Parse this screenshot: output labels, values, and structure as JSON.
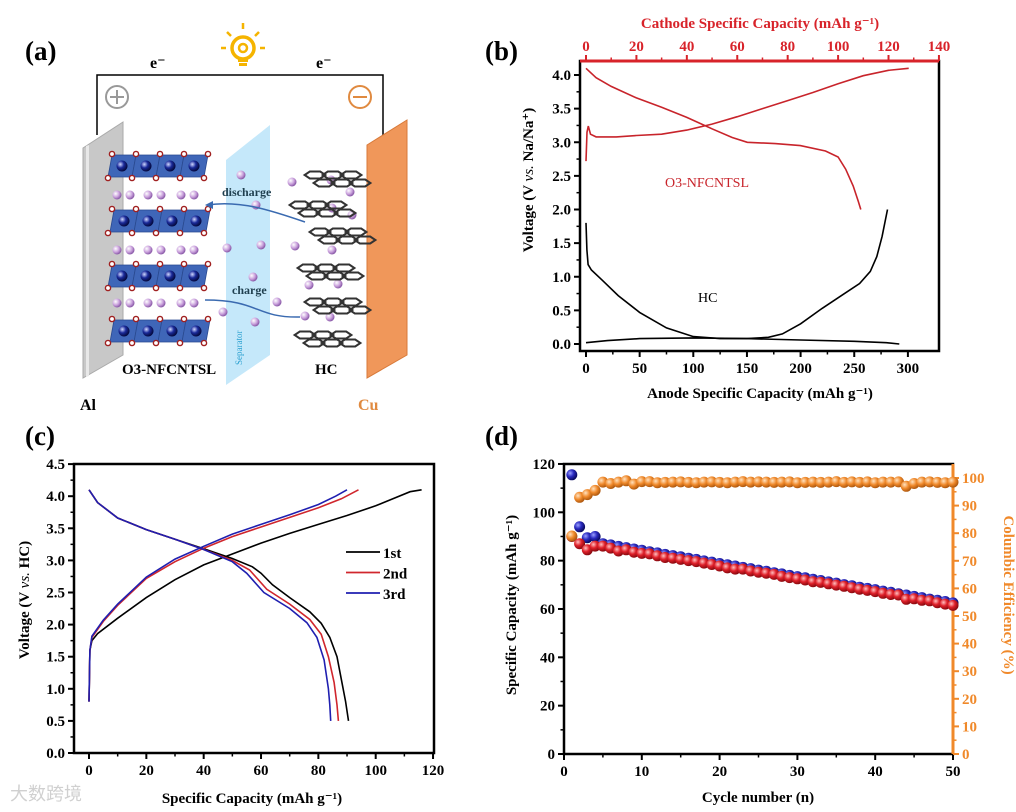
{
  "figure": {
    "watermark": "大数跨境"
  },
  "panel_a": {
    "label": "(a)",
    "electron_left": "e⁻",
    "electron_right": "e⁻",
    "discharge": "discharge",
    "charge": "charge",
    "separator": "Separator",
    "cathode": "O3-NFCNTSL",
    "anode": "HC",
    "al": "Al",
    "cu": "Cu",
    "colors": {
      "al": "#c8c8c8",
      "cu": "#f0975a",
      "separator": "#bfe6fa",
      "octahedra": "#3f66b8",
      "na_ion": "#c9a0dc",
      "wire": "#000000",
      "bulb": "#f5b400"
    }
  },
  "chart_data": [
    {
      "panel_label": "(b)",
      "type": "line",
      "title": "",
      "xlabel": "Anode Specific Capacity (mAh g⁻¹)",
      "x2label": "Cathode Specific Capacity (mAh g⁻¹)",
      "ylabel_parts": [
        "Voltage (V ",
        "vs.",
        " Na/Na⁺)"
      ],
      "xlim": [
        0,
        325
      ],
      "xticks": [
        0,
        50,
        100,
        150,
        200,
        250,
        300
      ],
      "x2lim": [
        0,
        140
      ],
      "x2ticks": [
        0,
        20,
        40,
        60,
        80,
        100,
        120,
        140
      ],
      "ylim": [
        0,
        4.2
      ],
      "yticks": [
        0.0,
        0.5,
        1.0,
        1.5,
        2.0,
        2.5,
        3.0,
        3.5,
        4.0
      ],
      "grid": false,
      "annotations": [
        "O3-NFCNTSL",
        "HC"
      ],
      "colors": {
        "cathode": "#c8242b",
        "anode": "#000000",
        "top_axis": "#d8232a"
      },
      "series": [
        {
          "name": "O3-NFCNTSL charge",
          "axis": "top",
          "color": "#c8242b",
          "points": [
            [
              0,
              2.72
            ],
            [
              0.4,
              3.15
            ],
            [
              0.9,
              3.24
            ],
            [
              1.8,
              3.12
            ],
            [
              4,
              3.08
            ],
            [
              12,
              3.08
            ],
            [
              20,
              3.1
            ],
            [
              30,
              3.12
            ],
            [
              40,
              3.18
            ],
            [
              50,
              3.27
            ],
            [
              60,
              3.38
            ],
            [
              70,
              3.5
            ],
            [
              80,
              3.62
            ],
            [
              90,
              3.74
            ],
            [
              100,
              3.87
            ],
            [
              110,
              3.99
            ],
            [
              120,
              4.07
            ],
            [
              128,
              4.1
            ]
          ]
        },
        {
          "name": "O3-NFCNTSL discharge",
          "axis": "top",
          "color": "#c8242b",
          "points": [
            [
              0,
              4.1
            ],
            [
              4,
              3.96
            ],
            [
              10,
              3.83
            ],
            [
              20,
              3.66
            ],
            [
              30,
              3.52
            ],
            [
              40,
              3.37
            ],
            [
              50,
              3.2
            ],
            [
              58,
              3.07
            ],
            [
              64,
              3.0
            ],
            [
              75,
              2.98
            ],
            [
              85,
              2.95
            ],
            [
              95,
              2.87
            ],
            [
              100,
              2.78
            ],
            [
              103,
              2.6
            ],
            [
              106,
              2.35
            ],
            [
              108,
              2.12
            ],
            [
              109,
              2.0
            ]
          ]
        },
        {
          "name": "HC curve 1",
          "axis": "bottom",
          "color": "#000000",
          "points": [
            [
              0,
              1.8
            ],
            [
              0.8,
              1.4
            ],
            [
              2,
              1.18
            ],
            [
              5,
              1.1
            ],
            [
              15,
              0.95
            ],
            [
              30,
              0.72
            ],
            [
              50,
              0.47
            ],
            [
              75,
              0.24
            ],
            [
              100,
              0.11
            ],
            [
              125,
              0.08
            ],
            [
              150,
              0.08
            ],
            [
              170,
              0.1
            ],
            [
              183,
              0.15
            ],
            [
              200,
              0.3
            ],
            [
              220,
              0.53
            ],
            [
              240,
              0.74
            ],
            [
              255,
              0.9
            ],
            [
              265,
              1.08
            ],
            [
              271,
              1.3
            ],
            [
              276,
              1.6
            ],
            [
              281,
              2.0
            ]
          ]
        },
        {
          "name": "HC curve 2",
          "axis": "bottom",
          "color": "#000000",
          "points": [
            [
              0,
              0.02
            ],
            [
              20,
              0.05
            ],
            [
              50,
              0.08
            ],
            [
              100,
              0.09
            ],
            [
              150,
              0.08
            ],
            [
              200,
              0.06
            ],
            [
              250,
              0.04
            ],
            [
              280,
              0.02
            ],
            [
              292,
              0.0
            ]
          ]
        }
      ]
    },
    {
      "panel_label": "(c)",
      "type": "line",
      "title": "",
      "xlabel": "Specific Capacity (mAh g⁻¹)",
      "ylabel_parts": [
        "Voltage (V ",
        "vs.",
        " HC)"
      ],
      "xlim": [
        0,
        120
      ],
      "xticks": [
        0,
        20,
        40,
        60,
        80,
        100,
        120
      ],
      "ylim": [
        0,
        4.5
      ],
      "yticks": [
        0.0,
        0.5,
        1.0,
        1.5,
        2.0,
        2.5,
        3.0,
        3.5,
        4.0,
        4.5
      ],
      "grid": false,
      "legend_position": "center-right",
      "legend": [
        {
          "name": "1st",
          "color": "#000000"
        },
        {
          "name": "2nd",
          "color": "#d0262d"
        },
        {
          "name": "3rd",
          "color": "#1f1fb0"
        }
      ],
      "series": [
        {
          "name": "1st charge",
          "color": "#000000",
          "points": [
            [
              0,
              0.8
            ],
            [
              0.3,
              1.6
            ],
            [
              1,
              1.75
            ],
            [
              3,
              1.86
            ],
            [
              10,
              2.1
            ],
            [
              20,
              2.42
            ],
            [
              30,
              2.7
            ],
            [
              40,
              2.93
            ],
            [
              50,
              3.1
            ],
            [
              60,
              3.27
            ],
            [
              70,
              3.42
            ],
            [
              80,
              3.56
            ],
            [
              90,
              3.7
            ],
            [
              100,
              3.85
            ],
            [
              106,
              3.96
            ],
            [
              112,
              4.07
            ],
            [
              116,
              4.1
            ]
          ]
        },
        {
          "name": "1st discharge",
          "color": "#000000",
          "points": [
            [
              0,
              4.1
            ],
            [
              3,
              3.9
            ],
            [
              10,
              3.66
            ],
            [
              20,
              3.48
            ],
            [
              30,
              3.33
            ],
            [
              40,
              3.18
            ],
            [
              50,
              3.03
            ],
            [
              57,
              2.9
            ],
            [
              60,
              2.8
            ],
            [
              64,
              2.62
            ],
            [
              70,
              2.42
            ],
            [
              77,
              2.2
            ],
            [
              81,
              2.02
            ],
            [
              84,
              1.8
            ],
            [
              86.5,
              1.5
            ],
            [
              88,
              1.15
            ],
            [
              89.5,
              0.8
            ],
            [
              90.5,
              0.5
            ]
          ]
        },
        {
          "name": "2nd charge",
          "color": "#d0262d",
          "points": [
            [
              0,
              0.8
            ],
            [
              0.3,
              1.6
            ],
            [
              1,
              1.8
            ],
            [
              5,
              2.05
            ],
            [
              10,
              2.3
            ],
            [
              20,
              2.72
            ],
            [
              30,
              2.98
            ],
            [
              40,
              3.19
            ],
            [
              50,
              3.37
            ],
            [
              60,
              3.52
            ],
            [
              70,
              3.67
            ],
            [
              80,
              3.82
            ],
            [
              88,
              3.96
            ],
            [
              94,
              4.1
            ]
          ]
        },
        {
          "name": "2nd discharge",
          "color": "#d0262d",
          "points": [
            [
              0,
              4.1
            ],
            [
              3,
              3.9
            ],
            [
              10,
              3.66
            ],
            [
              20,
              3.48
            ],
            [
              30,
              3.33
            ],
            [
              40,
              3.17
            ],
            [
              50,
              3.0
            ],
            [
              56,
              2.85
            ],
            [
              62,
              2.55
            ],
            [
              70,
              2.32
            ],
            [
              77,
              2.08
            ],
            [
              81,
              1.85
            ],
            [
              83.5,
              1.5
            ],
            [
              85.5,
              1.1
            ],
            [
              86.5,
              0.75
            ],
            [
              87,
              0.5
            ]
          ]
        },
        {
          "name": "3rd charge",
          "color": "#1f1fb0",
          "points": [
            [
              0,
              0.8
            ],
            [
              0.3,
              1.6
            ],
            [
              1,
              1.82
            ],
            [
              5,
              2.07
            ],
            [
              10,
              2.32
            ],
            [
              20,
              2.74
            ],
            [
              30,
              3.02
            ],
            [
              40,
              3.22
            ],
            [
              50,
              3.41
            ],
            [
              60,
              3.56
            ],
            [
              70,
              3.71
            ],
            [
              80,
              3.87
            ],
            [
              86,
              4.0
            ],
            [
              90,
              4.1
            ]
          ]
        },
        {
          "name": "3rd discharge",
          "color": "#1f1fb0",
          "points": [
            [
              0,
              4.1
            ],
            [
              3,
              3.9
            ],
            [
              10,
              3.66
            ],
            [
              20,
              3.48
            ],
            [
              30,
              3.33
            ],
            [
              40,
              3.17
            ],
            [
              50,
              2.98
            ],
            [
              55,
              2.8
            ],
            [
              61,
              2.5
            ],
            [
              70,
              2.25
            ],
            [
              76,
              2.03
            ],
            [
              79.5,
              1.8
            ],
            [
              82,
              1.45
            ],
            [
              83.5,
              1.0
            ],
            [
              84,
              0.75
            ],
            [
              84.3,
              0.5
            ]
          ]
        }
      ]
    },
    {
      "panel_label": "(d)",
      "type": "scatter",
      "title": "",
      "xlabel": "Cycle number (n)",
      "ylabel": "Specific Capacity (mAh g⁻¹)",
      "y2label": "Columbic Efficiency (%)",
      "xlim": [
        0,
        50
      ],
      "xticks": [
        0,
        10,
        20,
        30,
        40,
        50
      ],
      "ylim": [
        0,
        120
      ],
      "yticks": [
        0,
        20,
        40,
        60,
        80,
        100,
        120
      ],
      "y2lim": [
        0,
        100
      ],
      "y2ticks": [
        0,
        10,
        20,
        30,
        40,
        50,
        60,
        70,
        80,
        90,
        100
      ],
      "grid": false,
      "colors": {
        "right_axis": "#f0892a"
      },
      "series": [
        {
          "name": "Charge capacity",
          "axis": "left",
          "color": "#2a2ac0",
          "values": [
            115.5,
            94,
            89.5,
            90,
            87.0,
            86.5,
            85.9,
            85.4,
            84.8,
            84.3,
            83.7,
            83.2,
            82.6,
            82.1,
            81.6,
            81.0,
            80.5,
            79.9,
            79.4,
            78.8,
            78.3,
            77.8,
            77.2,
            76.7,
            76.1,
            75.6,
            75.0,
            74.5,
            73.9,
            73.4,
            72.9,
            72.3,
            71.8,
            71.2,
            70.7,
            70.1,
            69.6,
            69.0,
            68.5,
            68.0,
            67.4,
            66.9,
            66.3,
            65.8,
            65.2,
            64.7,
            64.1,
            63.6,
            63.1,
            62.5
          ]
        },
        {
          "name": "Discharge capacity",
          "axis": "left",
          "color": "#e0202a",
          "values": [
            90,
            87,
            84.5,
            86,
            86,
            85.2,
            84.0,
            84.5,
            83.5,
            83.0,
            82.8,
            82.0,
            81.3,
            81.0,
            80.5,
            80.0,
            79.6,
            79.0,
            78.4,
            77.8,
            77.0,
            76.5,
            76.5,
            75.7,
            75.2,
            74.8,
            74.3,
            73.5,
            73.0,
            72.5,
            72.0,
            71.3,
            71.0,
            70.4,
            69.9,
            69.4,
            68.8,
            68.2,
            67.7,
            67.2,
            66.5,
            66.0,
            65.8,
            64.0,
            64.2,
            63.6,
            63.4,
            62.6,
            62.0,
            61.5
          ]
        },
        {
          "name": "Coulombic efficiency",
          "axis": "right",
          "color": "#f0892a",
          "values": [
            79,
            93,
            94,
            95.5,
            98.5,
            98,
            98.5,
            99,
            97.8,
            98.7,
            98.7,
            98.3,
            98.4,
            98.5,
            98.6,
            98.4,
            98.3,
            98.5,
            98.6,
            98.4,
            98.3,
            98.5,
            98.7,
            98.5,
            98.6,
            98.5,
            98.4,
            98.5,
            98.6,
            98.3,
            98.4,
            98.5,
            98.4,
            98.5,
            98.7,
            98.4,
            98.6,
            98.4,
            98.6,
            98.3,
            98.5,
            98.5,
            98.6,
            97.0,
            98.0,
            98.5,
            98.6,
            98.4,
            98.3,
            98.5
          ]
        }
      ]
    }
  ]
}
